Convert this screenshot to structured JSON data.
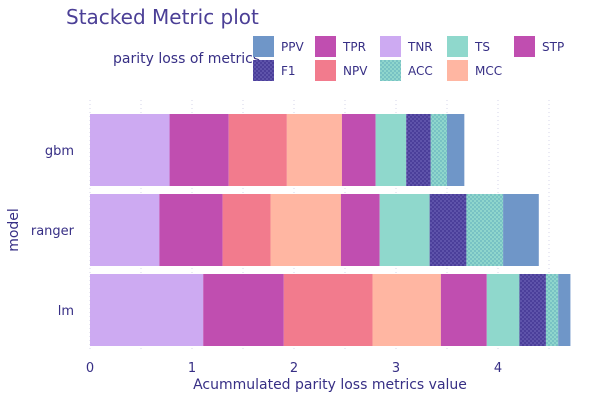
{
  "chart_data": {
    "type": "bar",
    "orientation": "horizontal",
    "stacked": true,
    "title": "Stacked Metric plot",
    "xlabel": "Acummulated parity loss metrics value",
    "ylabel": "model",
    "xlim": [
      0,
      4.85
    ],
    "xticks": [
      "0",
      "1",
      "2",
      "3",
      "4"
    ],
    "grid": true,
    "legend": {
      "title": "parity loss of metrics",
      "placement": "top",
      "entries": [
        {
          "name": "PPV",
          "color": "#6f96c8",
          "pattern": "solid"
        },
        {
          "name": "F1",
          "color": "#4b3f9a",
          "pattern": "dots"
        },
        {
          "name": "TPR",
          "color": "#c04eb0",
          "pattern": "solid"
        },
        {
          "name": "NPV",
          "color": "#f27b8d",
          "pattern": "solid"
        },
        {
          "name": "TNR",
          "color": "#cdaaf2",
          "pattern": "solid"
        },
        {
          "name": "ACC",
          "color": "#8fd6cc",
          "pattern": "dots"
        },
        {
          "name": "TS",
          "color": "#8fd8cc",
          "pattern": "solid"
        },
        {
          "name": "MCC",
          "color": "#ffb6a2",
          "pattern": "solid"
        },
        {
          "name": "STP",
          "color": "#c04eb0",
          "pattern": "solid"
        }
      ]
    },
    "categories": [
      "gbm",
      "ranger",
      "lm"
    ],
    "series": [
      {
        "name": "TNR",
        "values": [
          0.78,
          0.68,
          1.11
        ]
      },
      {
        "name": "STP",
        "values": [
          0.58,
          0.62,
          0.79
        ]
      },
      {
        "name": "NPV",
        "values": [
          0.57,
          0.47,
          0.87
        ]
      },
      {
        "name": "MCC",
        "values": [
          0.54,
          0.69,
          0.67
        ]
      },
      {
        "name": "TPR",
        "values": [
          0.33,
          0.38,
          0.45
        ]
      },
      {
        "name": "TS",
        "values": [
          0.3,
          0.49,
          0.32
        ]
      },
      {
        "name": "F1",
        "values": [
          0.24,
          0.36,
          0.26
        ]
      },
      {
        "name": "ACC",
        "values": [
          0.16,
          0.36,
          0.12
        ]
      },
      {
        "name": "PPV",
        "values": [
          0.17,
          0.35,
          0.12
        ]
      }
    ]
  }
}
